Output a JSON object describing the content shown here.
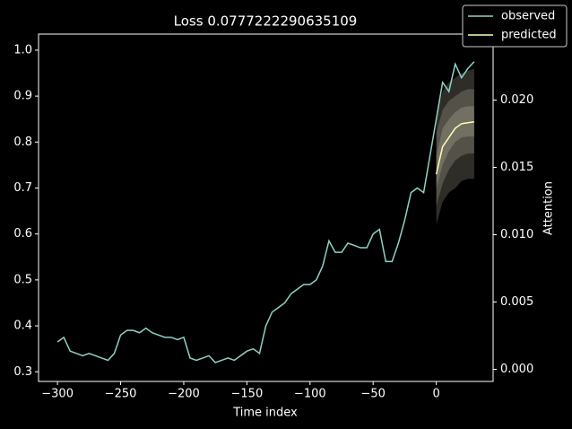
{
  "chart_data": {
    "type": "line",
    "title": "Loss 0.0777222290635109",
    "xlabel": "Time index",
    "y2label": "Attention",
    "legend": "upper right",
    "xlim": [
      -315,
      45
    ],
    "xticks": [
      {
        "value": -300,
        "label": "−300"
      },
      {
        "value": -250,
        "label": "−250"
      },
      {
        "value": -200,
        "label": "−200"
      },
      {
        "value": -150,
        "label": "−150"
      },
      {
        "value": -100,
        "label": "−100"
      },
      {
        "value": -50,
        "label": "−50"
      },
      0
    ],
    "ylim": [
      0.279,
      1.035
    ],
    "yticks": [
      0.3,
      0.4,
      0.5,
      0.6,
      0.7,
      0.8,
      0.9,
      {
        "value": 1,
        "label": "1.0"
      }
    ],
    "y2lim": [
      -0.0009,
      0.0249
    ],
    "y2ticks": [
      {
        "value": 0,
        "label": "0.000"
      },
      {
        "value": 0.005,
        "label": "0.005"
      },
      {
        "value": 0.01,
        "label": "0.010"
      },
      {
        "value": 0.015,
        "label": "0.015"
      },
      {
        "value": 0.02,
        "label": "0.020"
      }
    ],
    "series": [
      {
        "name": "observed",
        "color": "#8dd3c7",
        "x": [
          -300,
          -295,
          -290,
          -285,
          -280,
          -275,
          -270,
          -265,
          -260,
          -255,
          -250,
          -245,
          -240,
          -235,
          -230,
          -225,
          -220,
          -215,
          -210,
          -205,
          -200,
          -195,
          -190,
          -185,
          -180,
          -175,
          -170,
          -165,
          -160,
          -155,
          -150,
          -145,
          -140,
          -135,
          -130,
          -125,
          -120,
          -115,
          -110,
          -105,
          -100,
          -95,
          -90,
          -85,
          -80,
          -75,
          -70,
          -65,
          -60,
          -55,
          -50,
          -45,
          -40,
          -35,
          -30,
          -25,
          -20,
          -15,
          -10,
          -5,
          0,
          5,
          10,
          15,
          20,
          25,
          30
        ],
        "values": [
          0.365,
          0.375,
          0.345,
          0.34,
          0.335,
          0.34,
          0.335,
          0.33,
          0.325,
          0.34,
          0.38,
          0.39,
          0.39,
          0.385,
          0.395,
          0.385,
          0.38,
          0.375,
          0.375,
          0.37,
          0.375,
          0.33,
          0.325,
          0.33,
          0.335,
          0.32,
          0.325,
          0.33,
          0.325,
          0.335,
          0.345,
          0.35,
          0.34,
          0.4,
          0.43,
          0.44,
          0.45,
          0.47,
          0.48,
          0.49,
          0.49,
          0.5,
          0.53,
          0.585,
          0.56,
          0.56,
          0.58,
          0.575,
          0.57,
          0.57,
          0.6,
          0.61,
          0.54,
          0.54,
          0.58,
          0.63,
          0.69,
          0.7,
          0.69,
          0.77,
          0.85,
          0.93,
          0.91,
          0.97,
          0.94,
          0.96,
          0.975
        ]
      },
      {
        "name": "predicted",
        "color": "#feffb3",
        "x": [
          0,
          5,
          10,
          15,
          20,
          25,
          30
        ],
        "values": [
          0.73,
          0.79,
          0.81,
          0.83,
          0.84,
          0.842,
          0.844
        ]
      }
    ],
    "band_color": "#fffbe0",
    "bands": [
      {
        "x": [
          0,
          5,
          10,
          15,
          20,
          25,
          30
        ],
        "lower": [
          0.62,
          0.67,
          0.69,
          0.7,
          0.715,
          0.72,
          0.72
        ],
        "upper": [
          0.86,
          0.91,
          0.93,
          0.94,
          0.95,
          0.955,
          0.96
        ]
      },
      {
        "x": [
          0,
          5,
          10,
          15,
          20,
          25,
          30
        ],
        "lower": [
          0.66,
          0.71,
          0.74,
          0.76,
          0.77,
          0.775,
          0.775
        ],
        "upper": [
          0.82,
          0.87,
          0.89,
          0.9,
          0.91,
          0.915,
          0.915
        ]
      },
      {
        "x": [
          0,
          5,
          10,
          15,
          20,
          25,
          30
        ],
        "lower": [
          0.7,
          0.75,
          0.78,
          0.8,
          0.81,
          0.812,
          0.812
        ],
        "upper": [
          0.77,
          0.83,
          0.85,
          0.865,
          0.875,
          0.878,
          0.878
        ]
      }
    ]
  }
}
